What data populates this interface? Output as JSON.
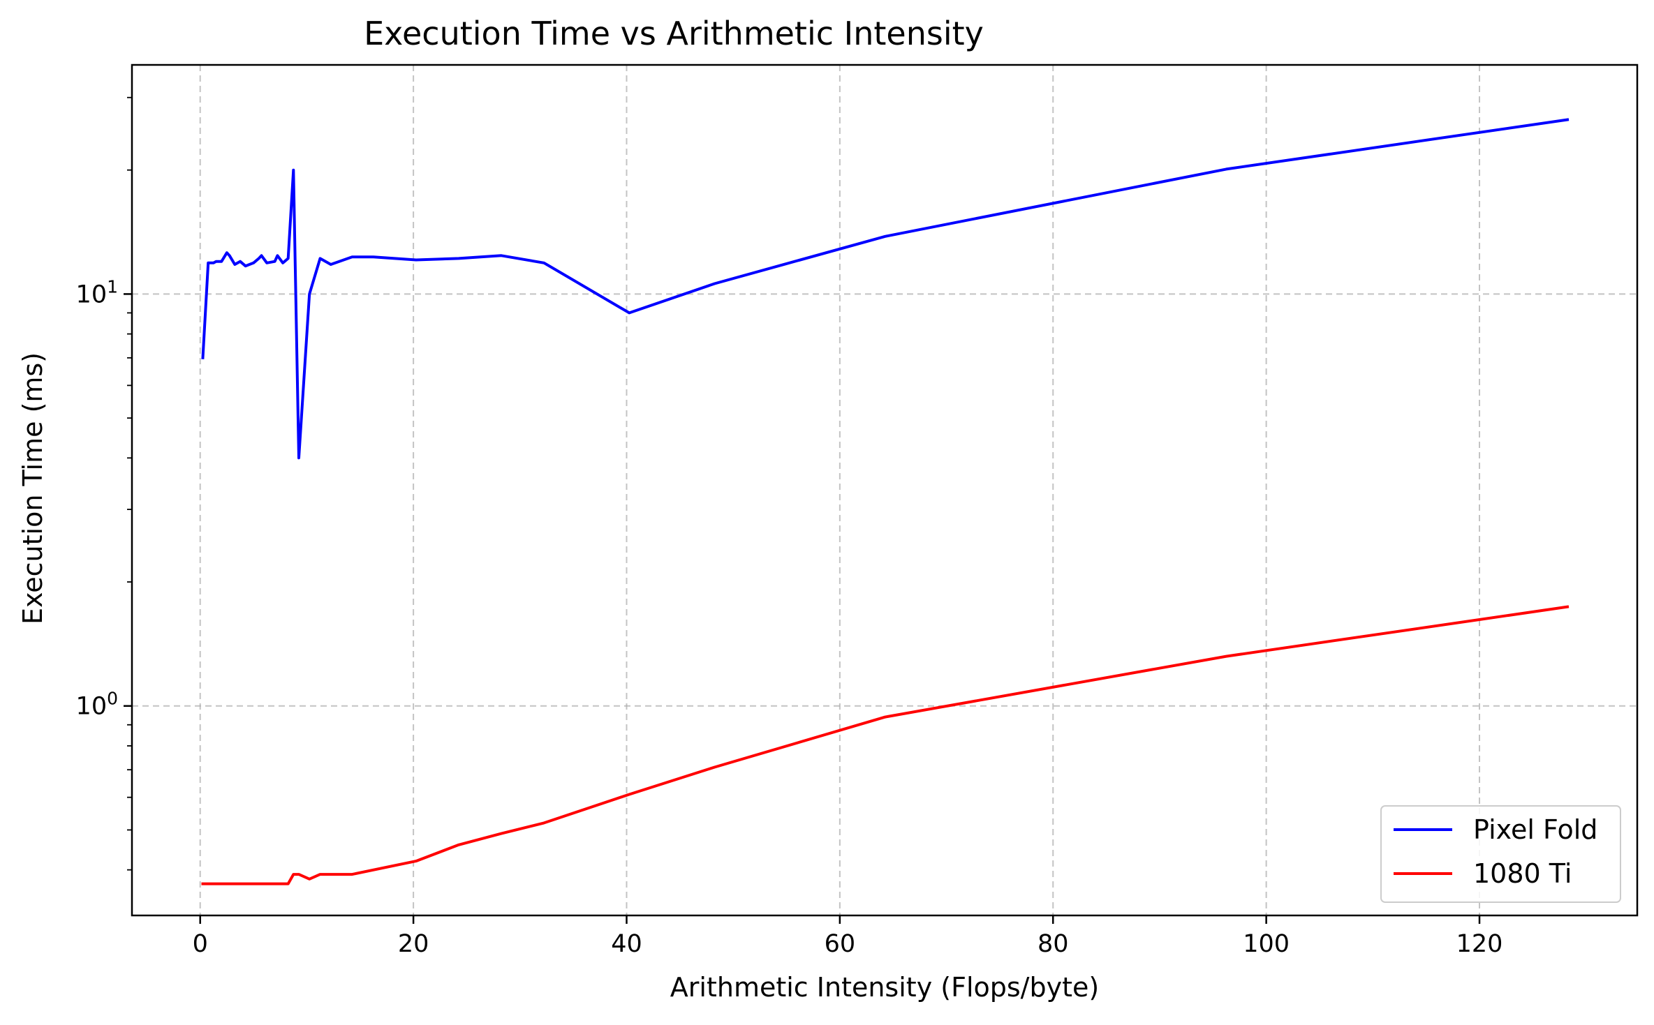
{
  "chart_data": {
    "type": "line",
    "title": "Execution Time vs Arithmetic Intensity",
    "xlabel": "Arithmetic Intensity (Flops/byte)",
    "ylabel": "Execution Time (ms)",
    "xlim": [
      -6.4,
      134.8
    ],
    "ylim": [
      0.31,
      36
    ],
    "yscale": "log",
    "grid": true,
    "legend_position": "lower right",
    "x_ticks": [
      0,
      20,
      40,
      60,
      80,
      100,
      120
    ],
    "x_tick_labels": [
      "0",
      "20",
      "40",
      "60",
      "80",
      "100",
      "120"
    ],
    "y_major_ticks": [
      {
        "value": 1,
        "base": "10",
        "exp": "0"
      },
      {
        "value": 10,
        "base": "10",
        "exp": "1"
      }
    ],
    "series": [
      {
        "name": "Pixel Fold",
        "color": "#0000ff",
        "x": [
          0.25,
          0.75,
          1.25,
          1.5,
          2.0,
          2.5,
          2.75,
          3.25,
          3.75,
          4.25,
          5.0,
          5.5,
          5.75,
          6.25,
          7.0,
          7.25,
          7.75,
          8.25,
          8.75,
          9.25,
          10.25,
          11.25,
          12.25,
          14.25,
          16.25,
          20.25,
          24.25,
          28.25,
          32.25,
          40.25,
          48.25,
          64.25,
          96.25,
          128.25
        ],
        "y": [
          7.0,
          11.9,
          11.9,
          12.0,
          12.0,
          12.6,
          12.4,
          11.8,
          12.0,
          11.7,
          11.9,
          12.2,
          12.4,
          11.9,
          12.0,
          12.4,
          11.9,
          12.2,
          20.0,
          4.0,
          10.0,
          12.2,
          11.8,
          12.3,
          12.3,
          12.1,
          12.2,
          12.4,
          11.9,
          9.0,
          10.6,
          13.8,
          20.1,
          26.5
        ]
      },
      {
        "name": "1080 Ti",
        "color": "#ff0000",
        "x": [
          0.25,
          8.25,
          8.75,
          9.25,
          10.25,
          11.25,
          14.25,
          20.25,
          24.25,
          28.25,
          32.25,
          40.25,
          48.25,
          64.25,
          96.25,
          128.25
        ],
        "y": [
          0.37,
          0.37,
          0.39,
          0.39,
          0.38,
          0.39,
          0.39,
          0.42,
          0.46,
          0.49,
          0.52,
          0.61,
          0.71,
          0.94,
          1.32,
          1.74
        ]
      }
    ]
  }
}
